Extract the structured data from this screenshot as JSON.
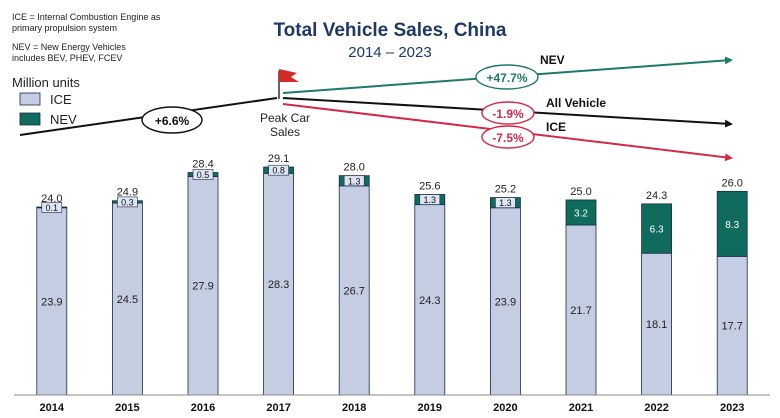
{
  "chart_data": {
    "type": "bar",
    "stacked": true,
    "title": "Total Vehicle Sales, China",
    "subtitle": "2014 – 2023",
    "ylabel": "Million units",
    "notes": [
      "ICE = Internal Combustion Engine as",
      "primary propulsion system",
      "NEV = New Energy Vehicles",
      "includes BEV, PHEV, FCEV"
    ],
    "categories": [
      "2014",
      "2015",
      "2016",
      "2017",
      "2018",
      "2019",
      "2020",
      "2021",
      "2022",
      "2023"
    ],
    "series": [
      {
        "name": "ICE",
        "color": "#c5cde3",
        "values": [
          23.9,
          24.5,
          27.9,
          28.3,
          26.7,
          24.3,
          23.9,
          21.7,
          18.1,
          17.7
        ],
        "labels": [
          "23.9",
          "24.5",
          "27.9",
          "28.3",
          "26.7",
          "24.3",
          "23.9",
          "21.7",
          "18.1",
          "17.7"
        ]
      },
      {
        "name": "NEV",
        "color": "#0f6b5c",
        "values": [
          0.1,
          0.3,
          0.5,
          0.8,
          1.3,
          1.3,
          1.3,
          3.2,
          6.3,
          8.3
        ],
        "labels": [
          "0.1",
          "0.3",
          "0.5",
          "0.8",
          "1.3",
          "1.3",
          "1.3",
          "3.2",
          "6.3",
          "8.3"
        ]
      }
    ],
    "totals": [
      "24.0",
      "24.9",
      "28.4",
      "29.1",
      "28.0",
      "25.6",
      "25.2",
      "25.0",
      "24.3",
      "26.0"
    ],
    "ylim": [
      0,
      30
    ],
    "grid": false,
    "legend": {
      "position": "top-left",
      "entries": [
        "ICE",
        "NEV"
      ]
    },
    "annotations": {
      "peak_label": [
        "Peak Car",
        "Sales"
      ],
      "pre_peak_growth": "+6.6%",
      "trends": [
        {
          "name": "NEV",
          "value": "+47.7%",
          "color": "#1d7a68"
        },
        {
          "name": "All Vehicle",
          "value": "-1.9%",
          "color": "#111111"
        },
        {
          "name": "ICE",
          "value": "-7.5%",
          "color": "#d42a4a"
        }
      ]
    },
    "colors": {
      "title": "#1f3864",
      "ice_fill": "#c5cde3",
      "nev_fill": "#0f6b5c",
      "bar_stroke": "#1b2a4a"
    }
  }
}
